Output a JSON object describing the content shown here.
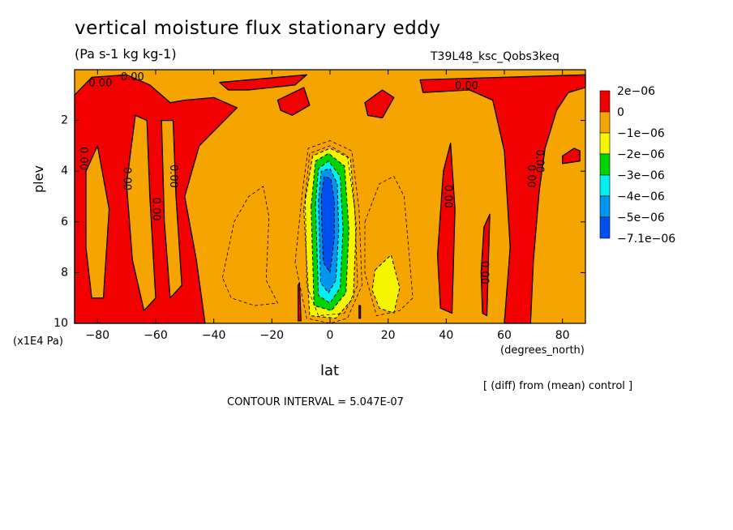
{
  "figure": {
    "title": "vertical moisture flux stationary eddy",
    "units": "(Pa s-1 kg kg-1)",
    "run_name": "T39L48_ksc_Qobs3keq",
    "diff_note": "[ (diff) from (mean) control ]",
    "contour_interval": "CONTOUR INTERVAL = 5.047E-07"
  },
  "chart_data": {
    "type": "heatmap",
    "title": "vertical moisture flux stationary eddy",
    "xlabel": "lat",
    "xunit": "(degrees_north)",
    "ylabel": "plev",
    "yunit": "(x1E4 Pa)",
    "xlim": [
      -87.9,
      87.9
    ],
    "ylim": [
      0.0,
      10.0
    ],
    "y_inverted": true,
    "x_ticks": [
      -80,
      -60,
      -40,
      -20,
      0,
      20,
      40,
      60,
      80
    ],
    "y_ticks": [
      2,
      4,
      6,
      8,
      10
    ],
    "x_tick_labels": [
      "−80",
      "−60",
      "−40",
      "−20",
      "0",
      "20",
      "40",
      "60",
      "80"
    ],
    "y_tick_labels": [
      "2",
      "4",
      "6",
      "8",
      "10"
    ],
    "colorbar": {
      "labels": [
        "2e−06",
        "0",
        "−1e−06",
        "−2e−06",
        "−3e−06",
        "−4e−06",
        "−5e−06",
        "−7.1e−06"
      ],
      "colors": [
        "#f20000",
        "#f6a400",
        "#f5f500",
        "#00d400",
        "#00f0f0",
        "#0096f0",
        "#0050f0"
      ]
    },
    "colors": {
      "positive": "#f20000",
      "background": "#f6a400",
      "minus1": "#f5f500",
      "minus2": "#00d400",
      "minus3": "#00f0f0",
      "minus4": "#0096f0",
      "minus5": "#0050f0"
    },
    "positive_regions": [
      [
        [
          -87.9,
          1.0
        ],
        [
          -82,
          0.3
        ],
        [
          -70,
          0.2
        ],
        [
          -62,
          0.6
        ],
        [
          -55,
          1.3
        ],
        [
          -50,
          1.2
        ],
        [
          -40,
          1.1
        ],
        [
          -34,
          1.4
        ],
        [
          -32,
          1.5
        ],
        [
          -45,
          3.0
        ],
        [
          -50,
          5.0
        ],
        [
          -46,
          7.5
        ],
        [
          -43,
          10.0
        ],
        [
          -87.9,
          10.0
        ]
      ],
      [
        [
          -38,
          0.5
        ],
        [
          -8,
          0.2
        ],
        [
          -12,
          0.6
        ],
        [
          -28,
          0.8
        ],
        [
          -35,
          0.8
        ]
      ],
      [
        [
          -18,
          1.2
        ],
        [
          -9,
          0.7
        ],
        [
          -7,
          1.4
        ],
        [
          -13,
          1.8
        ],
        [
          -17,
          1.6
        ]
      ],
      [
        [
          12,
          1.3
        ],
        [
          18,
          0.8
        ],
        [
          22,
          1.1
        ],
        [
          18,
          1.9
        ],
        [
          13,
          1.8
        ]
      ],
      [
        [
          31,
          0.4
        ],
        [
          87.9,
          0.2
        ],
        [
          87.9,
          0.7
        ],
        [
          82,
          0.9
        ],
        [
          78,
          1.6
        ],
        [
          74,
          3.1
        ],
        [
          72,
          4.8
        ],
        [
          70,
          7.5
        ],
        [
          69,
          10.0
        ],
        [
          60,
          10.0
        ],
        [
          62,
          7.0
        ],
        [
          60,
          3.2
        ],
        [
          56,
          1.2
        ],
        [
          48,
          0.8
        ],
        [
          32,
          0.9
        ]
      ],
      [
        [
          37,
          7.3
        ],
        [
          39,
          4.0
        ],
        [
          41.5,
          2.9
        ],
        [
          43,
          5.5
        ],
        [
          42,
          9.6
        ],
        [
          38,
          9.4
        ]
      ],
      [
        [
          52,
          8.0
        ],
        [
          53,
          6.2
        ],
        [
          55,
          5.7
        ],
        [
          54.5,
          7.6
        ],
        [
          54,
          9.7
        ],
        [
          52.5,
          9.6
        ]
      ],
      [
        [
          80,
          3.4
        ],
        [
          84,
          3.1
        ],
        [
          86,
          3.2
        ],
        [
          86,
          3.6
        ],
        [
          80,
          3.7
        ]
      ],
      [
        [
          -11,
          8.5
        ],
        [
          -10.5,
          8.4
        ],
        [
          -10,
          9.9
        ],
        [
          -11,
          9.9
        ]
      ],
      [
        [
          10,
          9.3
        ],
        [
          10.5,
          9.3
        ],
        [
          10.5,
          9.8
        ],
        [
          10,
          9.8
        ]
      ]
    ],
    "embedded_orange": [
      [
        [
          -84,
          4.0
        ],
        [
          -80,
          3.0
        ],
        [
          -76,
          5.5
        ],
        [
          -78,
          9.0
        ],
        [
          -82,
          9.0
        ],
        [
          -84,
          7.0
        ]
      ],
      [
        [
          -67,
          1.8
        ],
        [
          -63,
          2.0
        ],
        [
          -62,
          5.0
        ],
        [
          -60,
          9.0
        ],
        [
          -64,
          9.5
        ],
        [
          -68,
          7.5
        ],
        [
          -70,
          4.5
        ]
      ],
      [
        [
          -58,
          2.0
        ],
        [
          -54,
          2.0
        ],
        [
          -53,
          5.0
        ],
        [
          -51,
          8.5
        ],
        [
          -55,
          9.0
        ],
        [
          -57,
          6.0
        ]
      ]
    ],
    "negative_regions": [
      {
        "level": "minus1",
        "points": [
          [
            -9,
            5.5
          ],
          [
            -6,
            3.4
          ],
          [
            0,
            3.1
          ],
          [
            7,
            3.5
          ],
          [
            9,
            6.2
          ],
          [
            8,
            9.0
          ],
          [
            2,
            9.8
          ],
          [
            -7,
            9.7
          ]
        ]
      },
      {
        "level": "minus1",
        "points": [
          [
            15.5,
            7.9
          ],
          [
            21,
            7.3
          ],
          [
            24,
            8.6
          ],
          [
            22,
            9.6
          ],
          [
            17,
            9.4
          ],
          [
            14.5,
            8.7
          ]
        ]
      },
      {
        "level": "minus2",
        "points": [
          [
            -6.5,
            5.4
          ],
          [
            -5,
            3.6
          ],
          [
            -0.5,
            3.3
          ],
          [
            5,
            3.8
          ],
          [
            6.5,
            6.3
          ],
          [
            5.5,
            8.8
          ],
          [
            0.5,
            9.5
          ],
          [
            -5.5,
            9.3
          ]
        ]
      },
      {
        "level": "minus3",
        "points": [
          [
            -5,
            5.3
          ],
          [
            -4,
            3.9
          ],
          [
            -0.5,
            3.6
          ],
          [
            3.5,
            4.2
          ],
          [
            4.5,
            6.3
          ],
          [
            3.5,
            8.6
          ],
          [
            0,
            9.2
          ],
          [
            -4,
            8.9
          ]
        ]
      },
      {
        "level": "minus4",
        "points": [
          [
            -4,
            5.2
          ],
          [
            -3,
            4.0
          ],
          [
            0,
            3.9
          ],
          [
            2.5,
            4.5
          ],
          [
            3,
            6.3
          ],
          [
            2,
            8.3
          ],
          [
            -0.5,
            8.8
          ],
          [
            -3.2,
            8.4
          ]
        ]
      },
      {
        "level": "minus5",
        "points": [
          [
            -3,
            5.0
          ],
          [
            -2,
            4.2
          ],
          [
            0.3,
            4.3
          ],
          [
            1.5,
            5.2
          ],
          [
            1.5,
            6.6
          ],
          [
            0,
            8.0
          ],
          [
            -2.3,
            7.6
          ],
          [
            -2.8,
            6.2
          ]
        ]
      }
    ],
    "dashed_contours": [
      [
        [
          -37,
          8.2
        ],
        [
          -33,
          6.0
        ],
        [
          -28,
          5.0
        ],
        [
          -23,
          4.6
        ],
        [
          -21,
          5.8
        ],
        [
          -22,
          8.3
        ],
        [
          -18,
          9.2
        ],
        [
          -26,
          9.3
        ],
        [
          -34,
          9.0
        ]
      ],
      [
        [
          -12,
          7.6
        ],
        [
          -9.5,
          4.8
        ],
        [
          -7.5,
          3.1
        ],
        [
          0,
          2.8
        ],
        [
          7.5,
          3.2
        ],
        [
          10,
          5.5
        ],
        [
          11,
          8.5
        ],
        [
          6,
          9.8
        ],
        [
          0,
          10.0
        ],
        [
          -8,
          9.8
        ]
      ],
      [
        [
          12,
          6.0
        ],
        [
          17,
          4.5
        ],
        [
          22,
          4.2
        ],
        [
          25.5,
          5.0
        ],
        [
          27,
          7.0
        ],
        [
          28.5,
          9.0
        ],
        [
          24,
          9.5
        ],
        [
          16,
          9.7
        ],
        [
          12,
          8.0
        ]
      ],
      [
        [
          -8.5,
          5.0
        ],
        [
          -7,
          3.3
        ],
        [
          0,
          3.0
        ],
        [
          6,
          3.4
        ],
        [
          8.5,
          5.5
        ],
        [
          9.5,
          8.5
        ],
        [
          5,
          9.6
        ],
        [
          -4,
          9.7
        ],
        [
          -8,
          8.5
        ]
      ]
    ],
    "contour_labels": [
      {
        "text": "0.00",
        "x": -79,
        "y": 0.55,
        "angle": 0
      },
      {
        "text": "0.00",
        "x": -68,
        "y": 0.3,
        "angle": 0
      },
      {
        "text": "0.00",
        "x": 47,
        "y": 0.65,
        "angle": 0
      },
      {
        "text": "0.00",
        "x": -85,
        "y": 3.5,
        "angle": 90
      },
      {
        "text": "0.00",
        "x": -70,
        "y": 4.3,
        "angle": 90
      },
      {
        "text": "0.00",
        "x": -60,
        "y": 5.5,
        "angle": 90
      },
      {
        "text": "0.00",
        "x": -54,
        "y": 4.2,
        "angle": 90
      },
      {
        "text": "0.00",
        "x": 40.5,
        "y": 5.0,
        "angle": 90
      },
      {
        "text": "0.00",
        "x": 53,
        "y": 8.0,
        "angle": 90
      },
      {
        "text": "0.00",
        "x": 69,
        "y": 4.2,
        "angle": 90
      },
      {
        "text": "0.00",
        "x": 72,
        "y": 3.6,
        "angle": 90
      }
    ]
  }
}
